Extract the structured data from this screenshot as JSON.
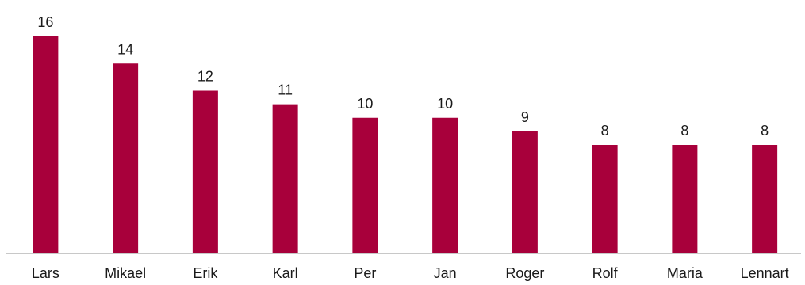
{
  "chart_data": {
    "type": "bar",
    "categories": [
      "Lars",
      "Mikael",
      "Erik",
      "Karl",
      "Per",
      "Jan",
      "Roger",
      "Rolf",
      "Maria",
      "Lennart"
    ],
    "values": [
      16,
      14,
      12,
      11,
      10,
      10,
      9,
      8,
      8,
      8
    ],
    "title": "",
    "xlabel": "",
    "ylabel": "",
    "ylim": [
      0,
      16
    ],
    "grid": false,
    "data_labels": true,
    "bar_color": "#a8003b",
    "axis_color": "#c8c8c8"
  }
}
